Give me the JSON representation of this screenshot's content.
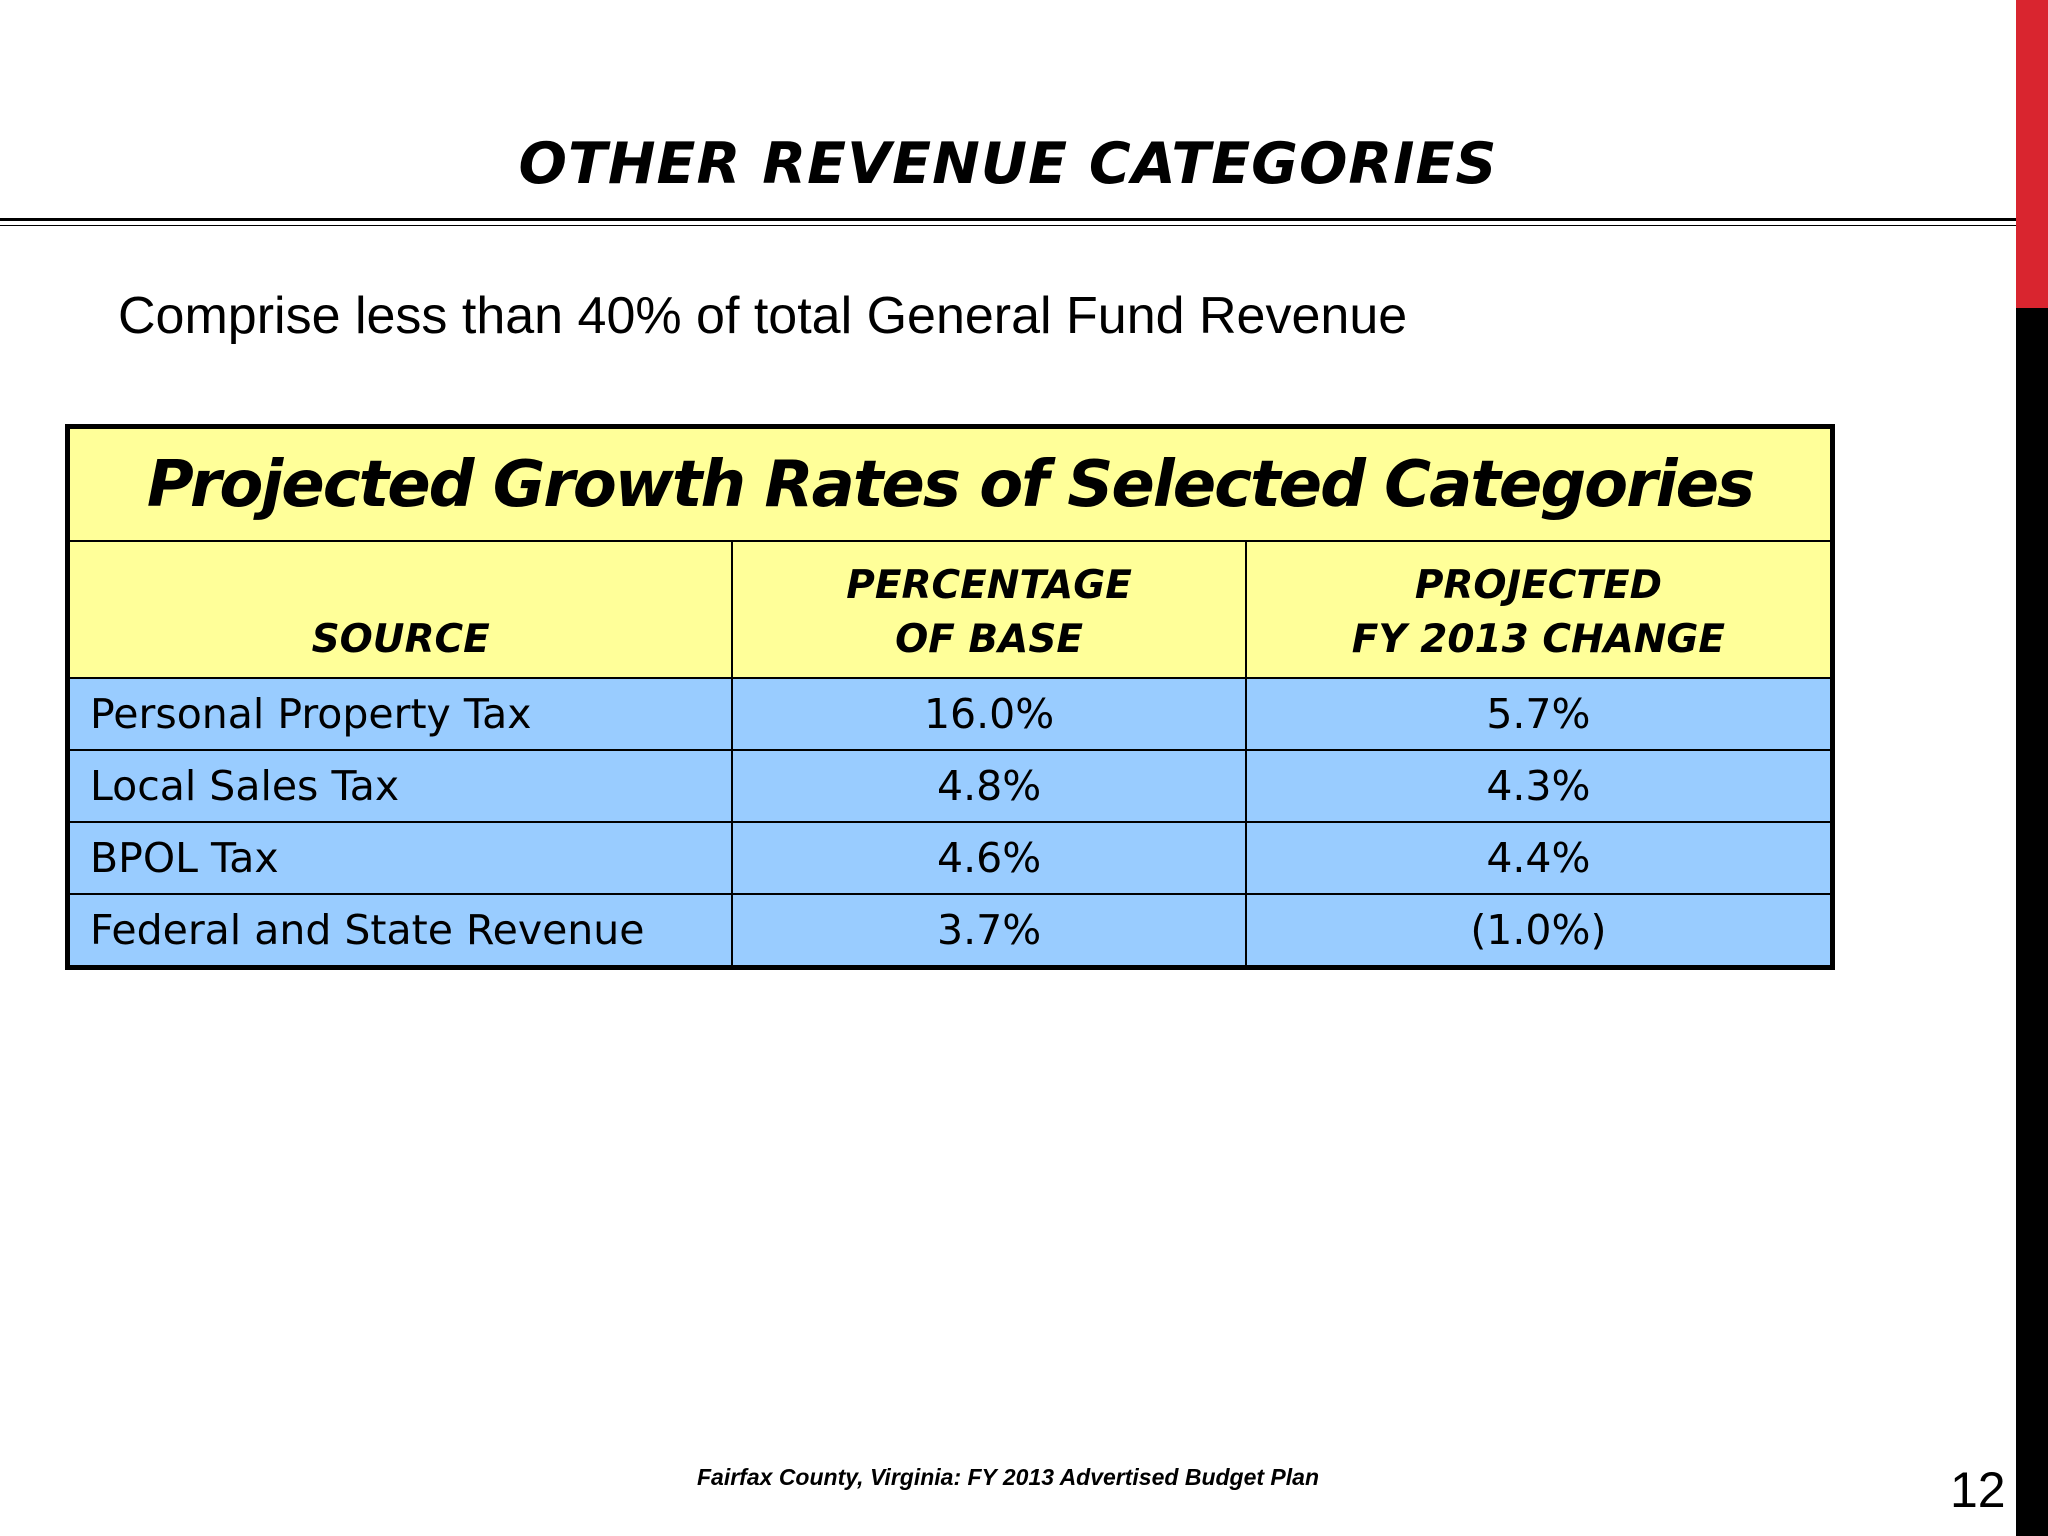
{
  "slide": {
    "title": "OTHER REVENUE CATEGORIES",
    "subtitle": "Comprise less than 40% of total General Fund Revenue",
    "footer": "Fairfax County, Virginia: FY 2013 Advertised Budget Plan",
    "page_number": "12"
  },
  "colors": {
    "header_bg": "#ffff99",
    "row_bg": "#99ccff",
    "accent_red": "#d9252f",
    "side_bar": "#000000"
  },
  "table": {
    "caption": "Projected Growth Rates of Selected Categories",
    "headers": {
      "source": "SOURCE",
      "percentage_line1": "PERCENTAGE",
      "percentage_line2": "OF BASE",
      "projected_line1": "PROJECTED",
      "projected_line2": "FY 2013 CHANGE"
    },
    "rows": [
      {
        "source": "Personal Property Tax",
        "percentage": "16.0%",
        "change": "5.7%"
      },
      {
        "source": "Local Sales Tax",
        "percentage": "4.8%",
        "change": "4.3%"
      },
      {
        "source": "BPOL Tax",
        "percentage": "4.6%",
        "change": "4.4%"
      },
      {
        "source": "Federal and State Revenue",
        "percentage": "3.7%",
        "change": "(1.0%)"
      }
    ]
  }
}
